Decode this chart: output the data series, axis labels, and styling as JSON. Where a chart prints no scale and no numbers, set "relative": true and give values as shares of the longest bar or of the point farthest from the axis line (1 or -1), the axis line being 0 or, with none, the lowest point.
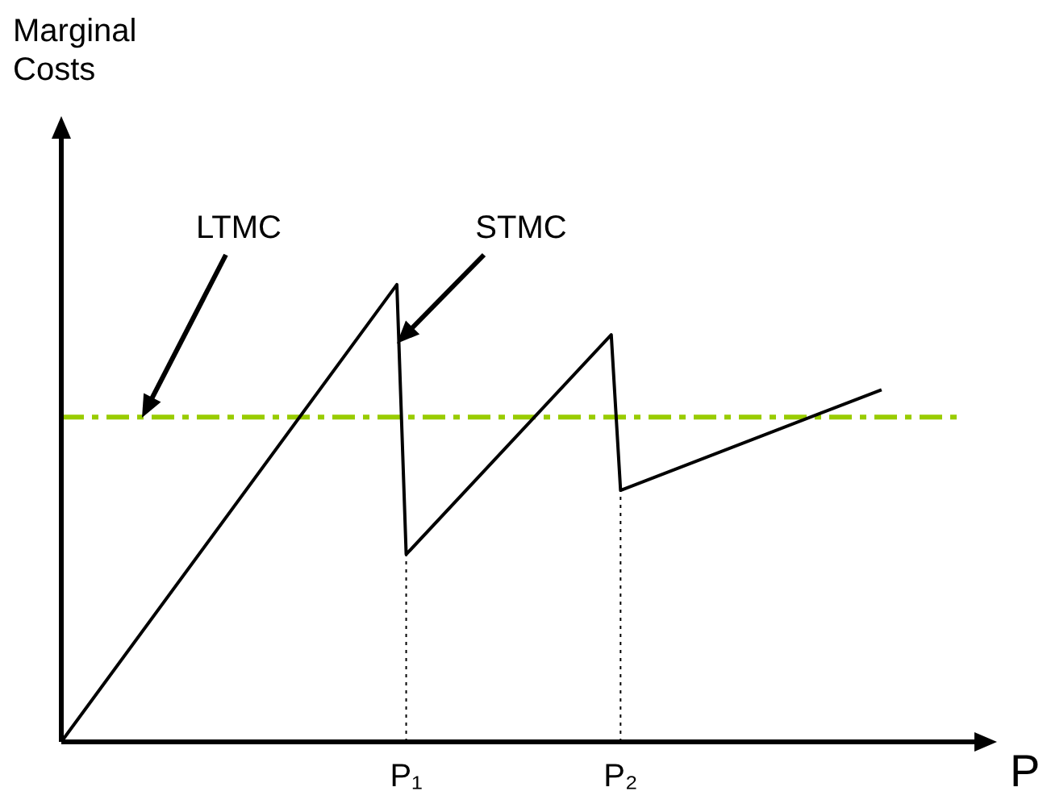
{
  "chart_data": {
    "type": "line",
    "relative": true,
    "xlabel": "P",
    "categories": [
      null,
      null,
      null,
      null,
      null,
      null,
      null,
      null,
      null,
      null,
      null,
      null,
      null,
      null,
      null,
      null,
      null,
      null,
      null,
      null,
      null,
      null,
      null,
      null,
      null,
      null,
      null,
      null,
      null,
      null,
      null,
      null,
      null,
      null,
      null,
      null,
      null,
      "P₁",
      null,
      null,
      null,
      null,
      null,
      null,
      null,
      null,
      null,
      null,
      null,
      null,
      null,
      null,
      null,
      null,
      null,
      null,
      null,
      null,
      null,
      null,
      "P₂",
      null,
      null,
      null,
      null,
      null,
      null,
      null,
      null,
      null,
      null,
      null,
      null,
      null,
      null,
      null,
      null,
      null,
      null,
      null,
      null,
      null,
      null,
      null,
      null,
      null,
      null,
      null,
      null,
      null,
      null,
      null,
      null,
      null,
      null,
      null,
      null,
      null,
      null,
      null
    ],
    "series": [
      {
        "color": "#000000",
        "values": [
          0,
          null,
          null,
          null,
          null,
          null,
          null,
          null,
          null,
          null,
          null,
          null,
          null,
          null,
          null,
          null,
          null,
          null,
          null,
          null,
          null,
          null,
          null,
          null,
          null,
          null,
          null,
          null,
          null,
          null,
          null,
          null,
          null,
          null,
          null,
          null,
          1,
          0.41,
          null,
          null,
          null,
          null,
          null,
          null,
          null,
          null,
          null,
          null,
          null,
          null,
          null,
          null,
          null,
          null,
          null,
          null,
          null,
          null,
          null,
          0.89,
          0.55,
          null,
          null,
          null,
          null,
          null,
          null,
          null,
          null,
          null,
          null,
          null,
          null,
          null,
          null,
          null,
          null,
          null,
          null,
          null,
          null,
          null,
          null,
          null,
          null,
          null,
          null,
          null,
          0.77,
          null,
          null,
          null,
          null,
          null,
          null,
          null,
          null,
          null,
          null,
          null
        ]
      }
    ],
    "ref_lines": [
      {
        "axis": "y",
        "value": 0.71,
        "color": "#99cc00",
        "line_style": "dashed"
      },
      {
        "axis": "x",
        "value": "P₁",
        "color": "#000000",
        "line_style": "dotted"
      },
      {
        "axis": "x",
        "value": "P₂",
        "color": "#000000",
        "line_style": "dotted"
      }
    ],
    "annotations": [
      "LTMC",
      "STMC",
      "Marginal Costs"
    ],
    "marker": "none",
    "line_style": "solid"
  }
}
